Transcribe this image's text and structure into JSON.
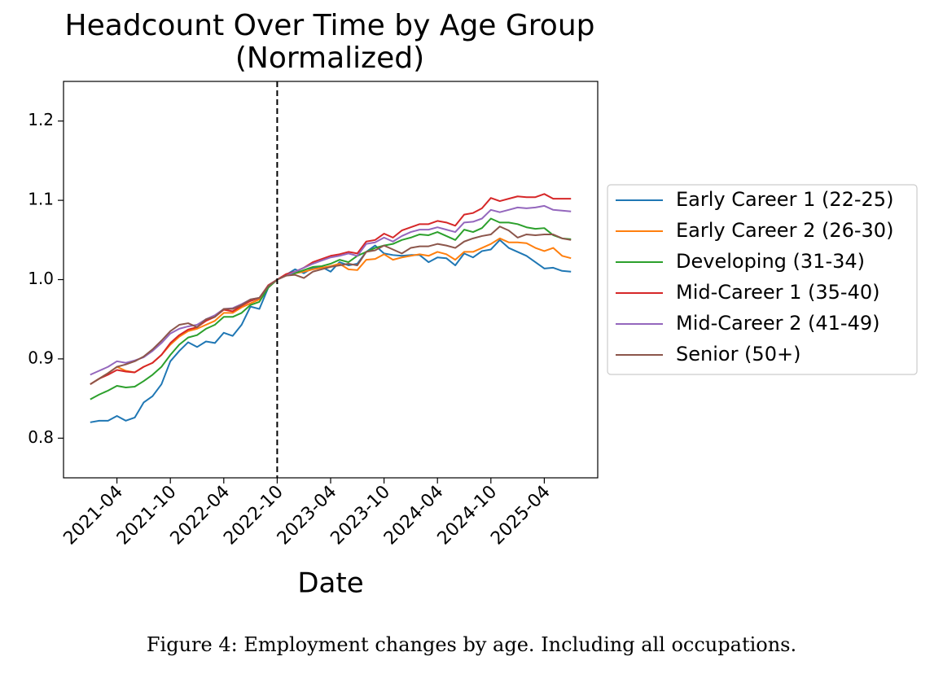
{
  "caption": "Figure 4: Employment changes by age. Including all occupations.",
  "chart_data": {
    "type": "line",
    "title": "Headcount Over Time by Age Group\n(Normalized)",
    "x_label": "Date",
    "x": [
      "2021-01",
      "2021-02",
      "2021-03",
      "2021-04",
      "2021-05",
      "2021-06",
      "2021-07",
      "2021-08",
      "2021-09",
      "2021-10",
      "2021-11",
      "2021-12",
      "2022-01",
      "2022-02",
      "2022-03",
      "2022-04",
      "2022-05",
      "2022-06",
      "2022-07",
      "2022-08",
      "2022-09",
      "2022-10",
      "2022-11",
      "2022-12",
      "2023-01",
      "2023-02",
      "2023-03",
      "2023-04",
      "2023-05",
      "2023-06",
      "2023-07",
      "2023-08",
      "2023-09",
      "2023-10",
      "2023-11",
      "2023-12",
      "2024-01",
      "2024-02",
      "2024-03",
      "2024-04",
      "2024-05",
      "2024-06",
      "2024-07",
      "2024-08",
      "2024-09",
      "2024-10",
      "2024-11",
      "2024-12",
      "2025-01",
      "2025-02",
      "2025-03",
      "2025-04",
      "2025-05",
      "2025-06",
      "2025-07"
    ],
    "xlim": [
      "2020-10",
      "2025-10"
    ],
    "xticks": [
      "2021-04",
      "2021-10",
      "2022-04",
      "2022-10",
      "2023-04",
      "2023-10",
      "2024-04",
      "2024-10",
      "2025-04"
    ],
    "ylim": [
      0.75,
      1.25
    ],
    "yticks": [
      0.8,
      0.9,
      {
        "value": 1,
        "label": "1.0"
      },
      1.1,
      1.2
    ],
    "vline": "2022-10",
    "grid": false,
    "legend": "outside right",
    "series": [
      {
        "name": "Early Career 1 (22-25)",
        "color": "#1f77b4",
        "values": [
          0.82,
          0.822,
          0.822,
          0.828,
          0.822,
          0.826,
          0.845,
          0.853,
          0.868,
          0.897,
          0.91,
          0.921,
          0.915,
          0.922,
          0.92,
          0.933,
          0.929,
          0.943,
          0.966,
          0.963,
          0.99,
          1.0,
          1.006,
          1.013,
          1.008,
          1.015,
          1.016,
          1.01,
          1.022,
          1.018,
          1.02,
          1.035,
          1.043,
          1.033,
          1.031,
          1.03,
          1.031,
          1.031,
          1.022,
          1.028,
          1.027,
          1.018,
          1.033,
          1.028,
          1.036,
          1.038,
          1.05,
          1.04,
          1.035,
          1.03,
          1.022,
          1.014,
          1.015,
          1.011,
          1.01
        ]
      },
      {
        "name": "Early Career 2 (26-30)",
        "color": "#ff7f0e",
        "values": [
          0.868,
          0.875,
          0.882,
          0.89,
          0.885,
          0.883,
          0.89,
          0.895,
          0.905,
          0.918,
          0.928,
          0.935,
          0.938,
          0.943,
          0.948,
          0.958,
          0.958,
          0.965,
          0.97,
          0.975,
          0.99,
          1.0,
          1.005,
          1.008,
          1.01,
          1.013,
          1.015,
          1.017,
          1.02,
          1.013,
          1.012,
          1.025,
          1.026,
          1.032,
          1.025,
          1.028,
          1.03,
          1.032,
          1.03,
          1.035,
          1.032,
          1.025,
          1.035,
          1.035,
          1.04,
          1.045,
          1.052,
          1.047,
          1.047,
          1.046,
          1.04,
          1.036,
          1.04,
          1.03,
          1.027
        ]
      },
      {
        "name": "Developing (31-34)",
        "color": "#2ca02c",
        "values": [
          0.849,
          0.855,
          0.86,
          0.866,
          0.864,
          0.865,
          0.872,
          0.88,
          0.89,
          0.905,
          0.918,
          0.927,
          0.93,
          0.938,
          0.943,
          0.953,
          0.953,
          0.958,
          0.968,
          0.972,
          0.99,
          1.0,
          1.005,
          1.008,
          1.012,
          1.016,
          1.017,
          1.02,
          1.025,
          1.022,
          1.03,
          1.035,
          1.04,
          1.043,
          1.045,
          1.05,
          1.053,
          1.057,
          1.056,
          1.06,
          1.055,
          1.05,
          1.063,
          1.06,
          1.065,
          1.077,
          1.072,
          1.072,
          1.07,
          1.066,
          1.064,
          1.065,
          1.056,
          1.052,
          1.051
        ]
      },
      {
        "name": "Mid-Career 1 (35-40)",
        "color": "#d62728",
        "values": [
          0.868,
          0.875,
          0.88,
          0.886,
          0.884,
          0.883,
          0.89,
          0.895,
          0.905,
          0.92,
          0.93,
          0.937,
          0.94,
          0.948,
          0.953,
          0.962,
          0.96,
          0.967,
          0.973,
          0.977,
          0.993,
          1.0,
          1.007,
          1.01,
          1.015,
          1.022,
          1.026,
          1.03,
          1.032,
          1.035,
          1.033,
          1.048,
          1.05,
          1.058,
          1.053,
          1.062,
          1.066,
          1.07,
          1.07,
          1.074,
          1.072,
          1.068,
          1.082,
          1.084,
          1.09,
          1.103,
          1.099,
          1.102,
          1.105,
          1.104,
          1.104,
          1.108,
          1.102,
          1.102,
          1.102
        ]
      },
      {
        "name": "Mid-Career 2 (41-49)",
        "color": "#9467bd",
        "values": [
          0.88,
          0.885,
          0.89,
          0.897,
          0.895,
          0.898,
          0.902,
          0.91,
          0.92,
          0.932,
          0.938,
          0.941,
          0.943,
          0.95,
          0.955,
          0.963,
          0.964,
          0.969,
          0.975,
          0.977,
          0.992,
          1.0,
          1.005,
          1.01,
          1.015,
          1.02,
          1.024,
          1.028,
          1.03,
          1.033,
          1.03,
          1.045,
          1.047,
          1.053,
          1.048,
          1.055,
          1.06,
          1.063,
          1.063,
          1.066,
          1.063,
          1.06,
          1.072,
          1.073,
          1.077,
          1.088,
          1.085,
          1.088,
          1.091,
          1.09,
          1.091,
          1.093,
          1.088,
          1.087,
          1.086
        ]
      },
      {
        "name": "Senior (50+)",
        "color": "#8c564b",
        "values": [
          0.868,
          0.875,
          0.882,
          0.89,
          0.893,
          0.897,
          0.903,
          0.912,
          0.923,
          0.935,
          0.943,
          0.945,
          0.94,
          0.95,
          0.953,
          0.963,
          0.963,
          0.968,
          0.975,
          0.977,
          0.992,
          1.0,
          1.005,
          1.006,
          1.002,
          1.01,
          1.013,
          1.016,
          1.018,
          1.02,
          1.018,
          1.035,
          1.037,
          1.043,
          1.038,
          1.033,
          1.04,
          1.042,
          1.042,
          1.045,
          1.043,
          1.04,
          1.048,
          1.052,
          1.055,
          1.057,
          1.067,
          1.062,
          1.053,
          1.057,
          1.056,
          1.057,
          1.057,
          1.052,
          1.05
        ]
      }
    ]
  }
}
